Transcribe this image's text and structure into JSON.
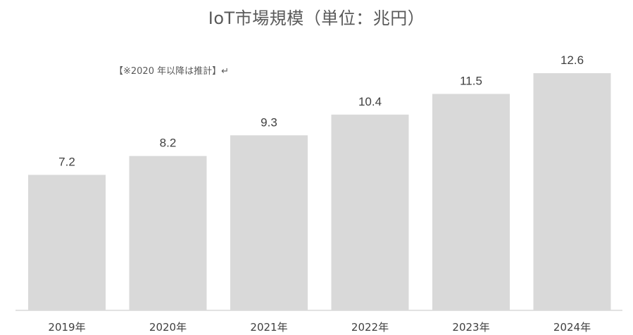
{
  "chart_data": {
    "type": "bar",
    "title": "IoT市場規模（単位：兆円）",
    "annotation": "【※2020 年以降は推計】↵",
    "categories": [
      "2019年",
      "2020年",
      "2021年",
      "2022年",
      "2023年",
      "2024年"
    ],
    "values": [
      7.2,
      8.2,
      9.3,
      10.4,
      11.5,
      12.6
    ],
    "data_labels": [
      "7.2",
      "8.2",
      "9.3",
      "10.4",
      "11.5",
      "12.6"
    ],
    "xlabel": "",
    "ylabel": "",
    "ylim": [
      0,
      12.6
    ],
    "grid": false,
    "legend": "none",
    "bar_color": "#d9d9d9"
  }
}
